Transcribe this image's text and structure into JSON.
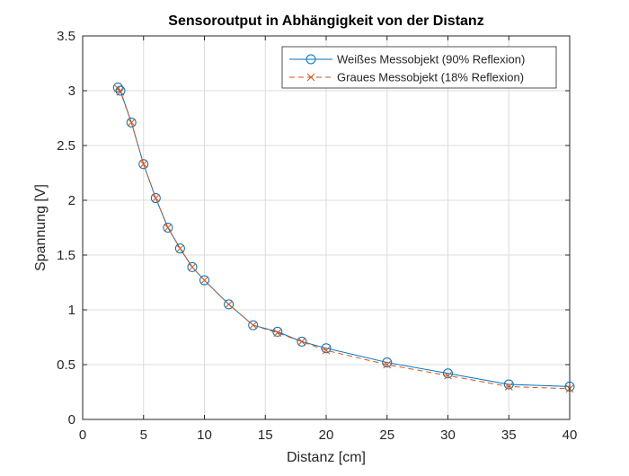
{
  "chart_data": {
    "type": "line",
    "title": "Sensoroutput in Abhängigkeit von der Distanz",
    "xlabel": "Distanz [cm]",
    "ylabel": "Spannung [V]",
    "xlim": [
      0,
      40
    ],
    "ylim": [
      0,
      3.5
    ],
    "xticks": [
      0,
      5,
      10,
      15,
      20,
      25,
      30,
      35,
      40
    ],
    "yticks": [
      0,
      0.5,
      1,
      1.5,
      2,
      2.5,
      3,
      3.5
    ],
    "xtick_labels": [
      "0",
      "5",
      "10",
      "15",
      "20",
      "25",
      "30",
      "35",
      "40"
    ],
    "ytick_labels": [
      "0",
      "0.5",
      "1",
      "1.5",
      "2",
      "2.5",
      "3",
      "3.5"
    ],
    "grid": true,
    "legend_position": "top-right",
    "series": [
      {
        "name": "Weißes Messobjekt (90% Reflexion)",
        "color": "#0072bd",
        "line_style": "solid",
        "marker": "circle",
        "x": [
          2.9,
          3.1,
          4,
          5,
          6,
          7,
          8,
          9,
          10,
          12,
          14,
          16,
          18,
          20,
          25,
          30,
          35,
          40
        ],
        "y": [
          3.03,
          3.0,
          2.71,
          2.33,
          2.02,
          1.75,
          1.56,
          1.39,
          1.27,
          1.05,
          0.86,
          0.8,
          0.71,
          0.65,
          0.52,
          0.42,
          0.32,
          0.3
        ]
      },
      {
        "name": "Graues Messobjekt (18% Reflexion)",
        "color": "#d95319",
        "line_style": "dashed",
        "marker": "x",
        "x": [
          2.9,
          3.1,
          4,
          5,
          6,
          7,
          8,
          9,
          10,
          12,
          14,
          16,
          18,
          20,
          25,
          30,
          35,
          40
        ],
        "y": [
          3.02,
          2.99,
          2.71,
          2.33,
          2.02,
          1.75,
          1.56,
          1.39,
          1.27,
          1.05,
          0.86,
          0.79,
          0.71,
          0.63,
          0.5,
          0.4,
          0.3,
          0.28
        ]
      }
    ]
  }
}
